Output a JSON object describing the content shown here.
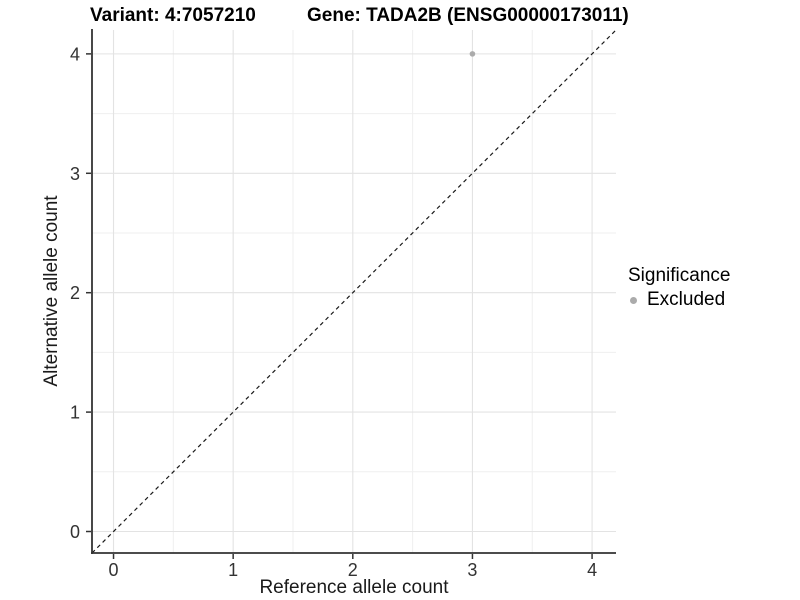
{
  "chart_data": {
    "type": "scatter",
    "title_variant": "Variant: 4:7057210",
    "title_gene": "Gene: TADA2B (ENSG00000173011)",
    "xlabel": "Reference allele count",
    "ylabel": "Alternative allele count",
    "xlim": [
      -0.18,
      4.2
    ],
    "ylim": [
      -0.18,
      4.2
    ],
    "x_ticks": [
      0,
      1,
      2,
      3,
      4
    ],
    "y_ticks": [
      0,
      1,
      2,
      3,
      4
    ],
    "x_minor_ticks": [
      0.5,
      1.5,
      2.5,
      3.5
    ],
    "y_minor_ticks": [
      0.5,
      1.5,
      2.5,
      3.5
    ],
    "grid": "major and minor gridlines, white panel background",
    "points": [
      {
        "x": 3,
        "y": 4,
        "significance": "Excluded"
      }
    ],
    "identity_line": {
      "style": "dashed",
      "x1": -0.18,
      "y1": -0.18,
      "x2": 4.2,
      "y2": 4.2
    },
    "legend": {
      "title": "Significance",
      "position": "right",
      "entries": [
        {
          "label": "Excluded",
          "color": "#ababab"
        }
      ]
    },
    "colors": {
      "point": "#ababab",
      "grid_major": "#e3e3e3",
      "grid_minor": "#efefef",
      "axis_line": "#333333",
      "tick_mark": "#333333",
      "tick_label": "#333333",
      "dashed_line": "#1a1a1a"
    }
  }
}
